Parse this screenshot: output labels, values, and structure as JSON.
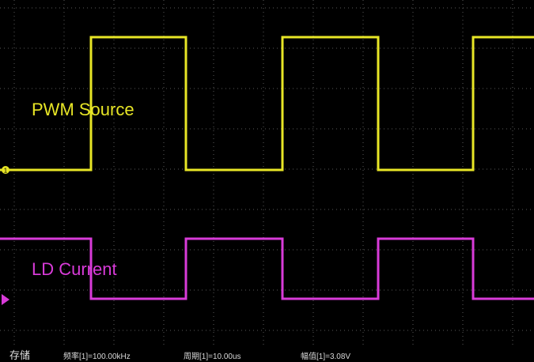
{
  "channels": {
    "ch1": {
      "label": "PWM Source",
      "color": "#e8e626",
      "marker": "1"
    },
    "ch2": {
      "label": "LD Current",
      "color": "#d93bd9"
    }
  },
  "status_bar": {
    "mode": "存储",
    "frequency": "频率[1]=100.00kHz",
    "period": "周期[1]=10.00us",
    "amplitude": "幅值[1]=3.08V"
  },
  "colors": {
    "background": "#000000",
    "grid": "#5a5a5a",
    "ch1_trace": "#e8e626",
    "ch2_trace": "#d93bd9"
  },
  "waveforms": {
    "ch1_levels": [
      "low",
      "high",
      "low",
      "high",
      "low",
      "high"
    ],
    "ch2_levels": [
      "high",
      "low",
      "high",
      "low",
      "high",
      "low"
    ],
    "duty_cycle": 0.5
  }
}
